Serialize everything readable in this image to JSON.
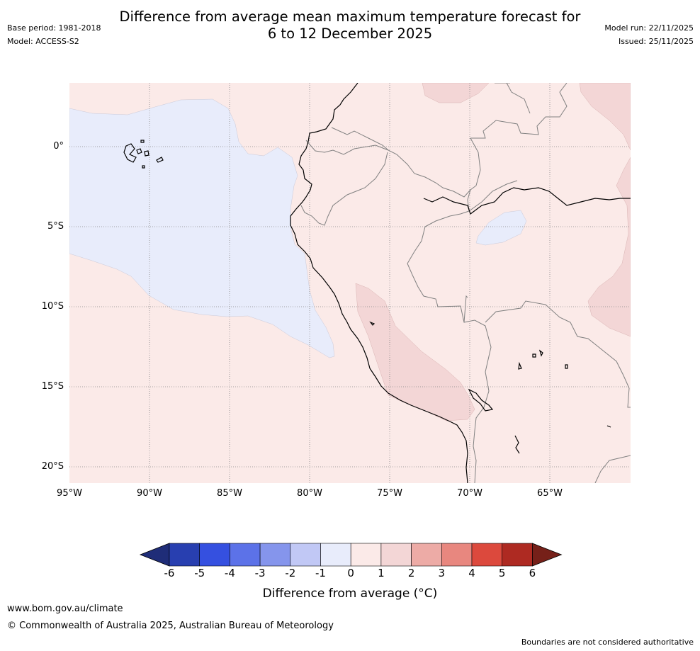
{
  "header": {
    "title_line1": "Difference from average mean maximum temperature forecast for",
    "title_line2": "6 to 12 December 2025",
    "base_period": "Base period: 1981-2018",
    "model": "Model: ACCESS-S2",
    "model_run": "Model run: 22/11/2025",
    "issued": "Issued: 25/11/2025"
  },
  "map": {
    "lat_labels": [
      "0°",
      "5°S",
      "10°S",
      "15°S",
      "20°S"
    ],
    "lon_labels": [
      "95°W",
      "90°W",
      "85°W",
      "80°W",
      "75°W",
      "70°W",
      "65°W"
    ],
    "colors": {
      "ocean_warm": "#fbeae8",
      "cool_anomaly": "#e8ecfb",
      "warm_anomaly": "#f3d6d6",
      "coast": "#000000",
      "border": "#808080"
    }
  },
  "colorbar": {
    "ticks": [
      "-6",
      "-5",
      "-4",
      "-3",
      "-2",
      "-1",
      "0",
      "1",
      "2",
      "3",
      "4",
      "5",
      "6"
    ],
    "colors": [
      "#1f2d78",
      "#283fb0",
      "#3550e0",
      "#5c72e8",
      "#8595ec",
      "#c1c8f5",
      "#e8ecfb",
      "#fbeae8",
      "#f3d6d6",
      "#edaba6",
      "#e8877f",
      "#dc493d",
      "#ae2a22",
      "#762019"
    ],
    "label": "Difference from average (°C)"
  },
  "footer": {
    "url": "www.bom.gov.au/climate",
    "copyright": "© Commonwealth of Australia 2025, Australian Bureau of Meteorology",
    "disclaimer": "Boundaries are not considered authoritative"
  }
}
